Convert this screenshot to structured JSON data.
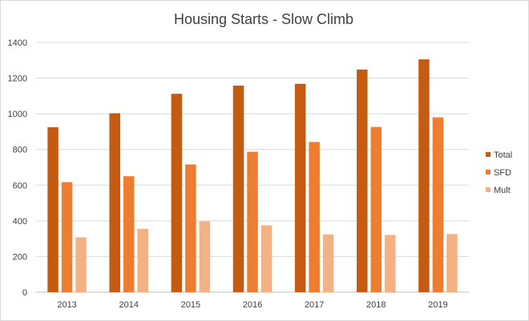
{
  "chart_data": {
    "type": "bar",
    "title": "Housing Starts - Slow Climb",
    "xlabel": "",
    "ylabel": "",
    "categories": [
      "2013",
      "2014",
      "2015",
      "2016",
      "2017",
      "2018",
      "2019"
    ],
    "ylim": [
      0,
      1400
    ],
    "yticks": [
      0,
      200,
      400,
      600,
      800,
      1000,
      1200,
      1400
    ],
    "grid": true,
    "legend_position": "right",
    "series": [
      {
        "name": "Total",
        "color": "#c55a11",
        "values": [
          925,
          1003,
          1112,
          1158,
          1168,
          1248,
          1305
        ]
      },
      {
        "name": "SFD",
        "color": "#ed7d31",
        "values": [
          617,
          650,
          716,
          787,
          842,
          926,
          980
        ]
      },
      {
        "name": "Mult",
        "color": "#f4b183",
        "values": [
          307,
          355,
          397,
          375,
          324,
          321,
          326
        ]
      }
    ]
  }
}
